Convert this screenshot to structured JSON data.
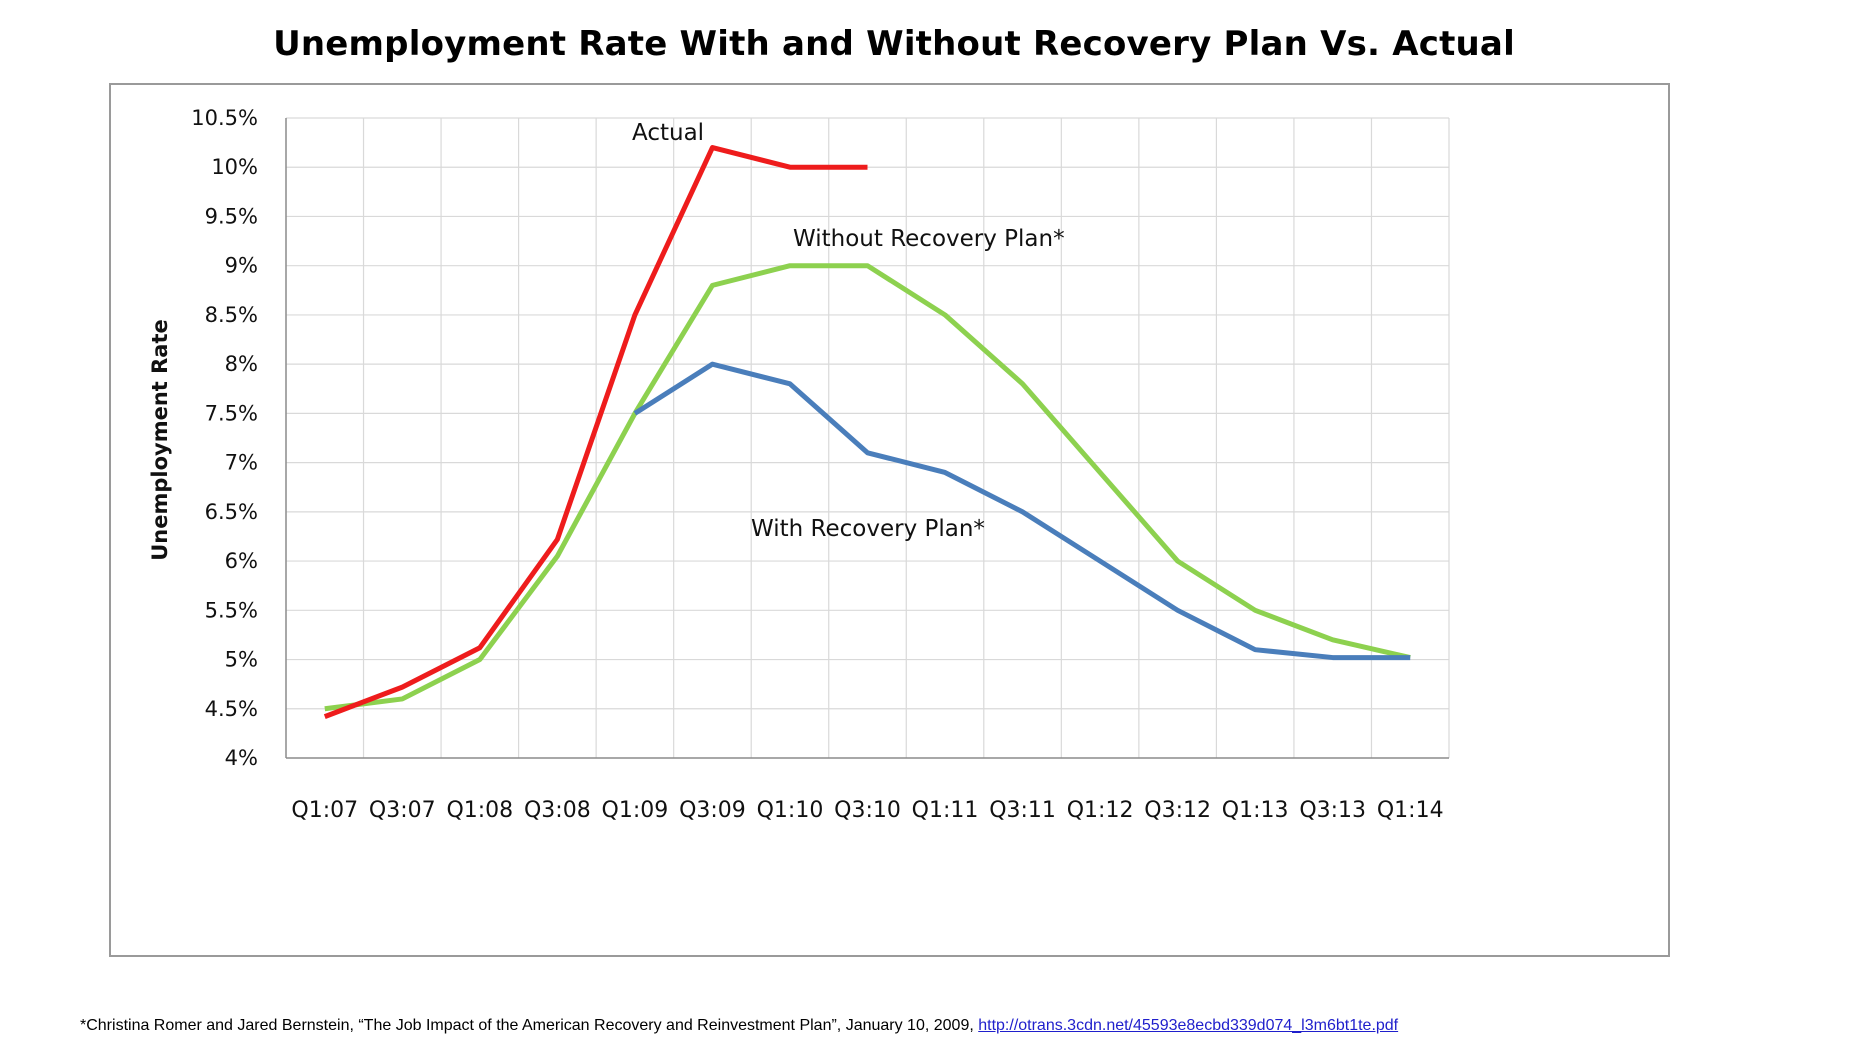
{
  "chart_data": {
    "type": "line",
    "title": "Unemployment Rate With and Without Recovery Plan Vs. Actual",
    "xlabel": "",
    "ylabel": "Unemployment Rate",
    "categories": [
      "Q1:07",
      "Q3:07",
      "Q1:08",
      "Q3:08",
      "Q1:09",
      "Q3:09",
      "Q1:10",
      "Q3:10",
      "Q1:11",
      "Q3:11",
      "Q1:12",
      "Q3:12",
      "Q1:13",
      "Q3:13",
      "Q1:14"
    ],
    "yticks": [
      "4%",
      "4.5%",
      "5%",
      "5.5%",
      "6%",
      "6.5%",
      "7%",
      "7.5%",
      "8%",
      "8.5%",
      "9%",
      "9.5%",
      "10%",
      "10.5%"
    ],
    "ylim": [
      4,
      10.5
    ],
    "grid": true,
    "series": [
      {
        "name": "Actual",
        "color": "#ee1c1c",
        "x": [
          0,
          1,
          2,
          3,
          4,
          5,
          6,
          7
        ],
        "values": [
          4.42,
          4.72,
          5.12,
          6.22,
          8.5,
          10.2,
          10.0,
          10.0
        ]
      },
      {
        "name": "Without Recovery Plan*",
        "color": "#8dd14f",
        "x": [
          0,
          1,
          2,
          3,
          4,
          5,
          6,
          7,
          8,
          9,
          10,
          11,
          12,
          13,
          14
        ],
        "values": [
          4.5,
          4.6,
          5.0,
          6.05,
          7.5,
          8.8,
          9.0,
          9.0,
          8.5,
          7.8,
          6.9,
          6.0,
          5.5,
          5.2,
          5.02
        ]
      },
      {
        "name": "With Recovery Plan*",
        "color": "#4a7ebb",
        "x": [
          4,
          5,
          6,
          7,
          8,
          9,
          10,
          11,
          12,
          13,
          14
        ],
        "values": [
          7.5,
          8.0,
          7.8,
          7.1,
          6.9,
          6.5,
          6.0,
          5.5,
          5.1,
          5.02,
          5.02
        ]
      }
    ]
  },
  "footnote": {
    "text": "*Christina Romer and Jared Bernstein, “The Job Impact of the American Recovery and Reinvestment Plan”, January 10, 2009, ",
    "link": "http://otrans.3cdn.net/45593e8ecbd339d074_l3m6bt1te.pdf"
  }
}
